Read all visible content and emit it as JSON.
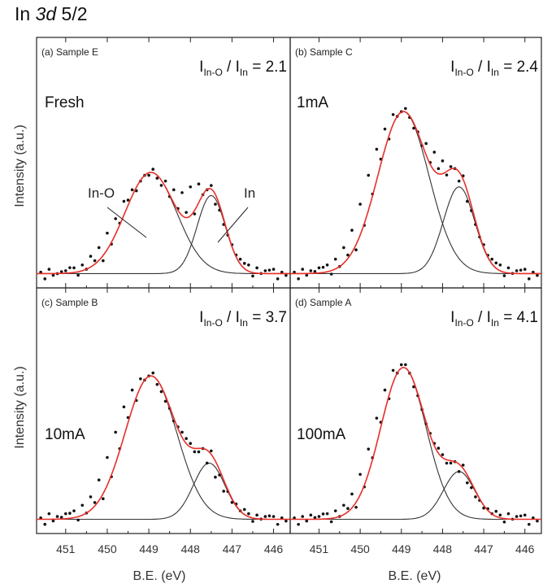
{
  "figure": {
    "title_prefix": "In ",
    "title_italic": "3d",
    "title_suffix": " 5/2",
    "ylabel": "Intensity (a.u.)",
    "xlabel": "B.E. (eV)"
  },
  "colors": {
    "data_points": "#111111",
    "component_fit": "#333333",
    "envelope_fit": "#e8302a",
    "axes": "#222222"
  },
  "chart_data": [
    {
      "type": "scatter",
      "panel_label": "(a) Sample E",
      "condition": "Fresh",
      "ratio": {
        "prefix": "I",
        "sub1": "In-O",
        "mid": " / I",
        "sub2": "In",
        "value": "= 2.1"
      },
      "x_axis": {
        "label": "B.E. (eV)",
        "reversed": true,
        "range": [
          451.7,
          445.6
        ],
        "ticks": [
          451,
          450,
          449,
          448,
          447,
          446
        ]
      },
      "y_range": [
        0,
        1.3
      ],
      "annotations": [
        {
          "text": "In-O",
          "target": [
            449.2,
            0.38
          ]
        },
        {
          "text": "In",
          "target": [
            447.6,
            0.22
          ]
        }
      ],
      "fit_components": [
        {
          "name": "In-O",
          "center": 448.95,
          "height": 0.7,
          "sigma": 0.62
        },
        {
          "name": "In",
          "center": 447.5,
          "height": 0.54,
          "sigma": 0.34
        }
      ],
      "baseline": 0.02,
      "series": [
        {
          "name": "data",
          "x": [
            451.6,
            451.4,
            451.2,
            451.0,
            450.8,
            450.6,
            450.4,
            450.2,
            450.0,
            449.8,
            449.6,
            449.4,
            449.2,
            449.0,
            448.8,
            448.6,
            448.4,
            448.2,
            448.0,
            447.8,
            447.6,
            447.4,
            447.2,
            447.0,
            446.8,
            446.6,
            446.4,
            446.2,
            446.0,
            445.8
          ],
          "y": [
            0.03,
            0.05,
            0.02,
            0.04,
            0.06,
            0.08,
            0.14,
            0.2,
            0.3,
            0.4,
            0.52,
            0.6,
            0.66,
            0.7,
            0.68,
            0.66,
            0.6,
            0.58,
            0.62,
            0.64,
            0.6,
            0.5,
            0.36,
            0.22,
            0.12,
            0.08,
            0.06,
            0.04,
            0.05,
            0.03
          ]
        }
      ]
    },
    {
      "type": "scatter",
      "panel_label": "(b) Sample C",
      "condition": "1mA",
      "ratio": {
        "prefix": "I",
        "sub1": "In-O",
        "mid": " / I",
        "sub2": "In",
        "value": "= 2.4"
      },
      "x_axis": {
        "label": "B.E. (eV)",
        "reversed": true,
        "range": [
          451.7,
          445.6
        ],
        "ticks": [
          451,
          450,
          449,
          448,
          447,
          446
        ]
      },
      "y_range": [
        0,
        1.3
      ],
      "annotations": [],
      "fit_components": [
        {
          "name": "In-O",
          "center": 448.95,
          "height": 1.12,
          "sigma": 0.62
        },
        {
          "name": "In",
          "center": 447.6,
          "height": 0.6,
          "sigma": 0.38
        }
      ],
      "baseline": 0.02,
      "series": [
        {
          "name": "data",
          "x": [
            451.6,
            451.4,
            451.2,
            451.0,
            450.8,
            450.6,
            450.4,
            450.2,
            450.0,
            449.8,
            449.6,
            449.4,
            449.2,
            449.0,
            448.8,
            448.6,
            448.4,
            448.2,
            448.0,
            447.8,
            447.6,
            447.4,
            447.2,
            447.0,
            446.8,
            446.6,
            446.4,
            446.2,
            446.0,
            445.8
          ],
          "y": [
            0.03,
            0.05,
            0.04,
            0.06,
            0.08,
            0.12,
            0.2,
            0.32,
            0.5,
            0.7,
            0.88,
            1.02,
            1.12,
            1.14,
            1.1,
            1.0,
            0.92,
            0.86,
            0.8,
            0.76,
            0.66,
            0.52,
            0.36,
            0.22,
            0.12,
            0.08,
            0.06,
            0.04,
            0.05,
            0.03
          ]
        }
      ]
    },
    {
      "type": "scatter",
      "panel_label": "(c) Sample B",
      "condition": "10mA",
      "ratio": {
        "prefix": "I",
        "sub1": "In-O",
        "mid": " / I",
        "sub2": "In",
        "value": "= 3.7"
      },
      "x_axis": {
        "label": "B.E. (eV)",
        "reversed": true,
        "range": [
          451.7,
          445.6
        ],
        "ticks": [
          451,
          450,
          449,
          448,
          447,
          446
        ]
      },
      "y_range": [
        0,
        1.3
      ],
      "annotations": [],
      "fit_components": [
        {
          "name": "In-O",
          "center": 448.95,
          "height": 1.02,
          "sigma": 0.62
        },
        {
          "name": "In",
          "center": 447.55,
          "height": 0.4,
          "sigma": 0.38
        }
      ],
      "baseline": 0.02,
      "series": [
        {
          "name": "data",
          "x": [
            451.6,
            451.4,
            451.2,
            451.0,
            450.8,
            450.6,
            450.4,
            450.2,
            450.0,
            449.8,
            449.6,
            449.4,
            449.2,
            449.0,
            448.8,
            448.6,
            448.4,
            448.2,
            448.0,
            447.8,
            447.6,
            447.4,
            447.2,
            447.0,
            446.8,
            446.6,
            446.4,
            446.2,
            446.0,
            445.8
          ],
          "y": [
            0.03,
            0.06,
            0.04,
            0.06,
            0.08,
            0.12,
            0.18,
            0.3,
            0.46,
            0.64,
            0.82,
            0.94,
            1.02,
            1.04,
            0.98,
            0.86,
            0.72,
            0.64,
            0.56,
            0.5,
            0.42,
            0.32,
            0.22,
            0.14,
            0.08,
            0.06,
            0.05,
            0.04,
            0.04,
            0.03
          ]
        }
      ]
    },
    {
      "type": "scatter",
      "panel_label": "(d) Sample A",
      "condition": "100mA",
      "ratio": {
        "prefix": "I",
        "sub1": "In-O",
        "mid": " / I",
        "sub2": "In",
        "value": "= 4.1"
      },
      "x_axis": {
        "label": "B.E. (eV)",
        "reversed": true,
        "range": [
          451.7,
          445.6
        ],
        "ticks": [
          451,
          450,
          449,
          448,
          447,
          446
        ]
      },
      "y_range": [
        0,
        1.3
      ],
      "annotations": [],
      "fit_components": [
        {
          "name": "In-O",
          "center": 448.95,
          "height": 1.08,
          "sigma": 0.55
        },
        {
          "name": "In",
          "center": 447.6,
          "height": 0.34,
          "sigma": 0.38
        }
      ],
      "baseline": 0.02,
      "series": [
        {
          "name": "data",
          "x": [
            451.6,
            451.4,
            451.2,
            451.0,
            450.8,
            450.6,
            450.4,
            450.2,
            450.0,
            449.8,
            449.6,
            449.4,
            449.2,
            449.0,
            448.8,
            448.6,
            448.4,
            448.2,
            448.0,
            447.8,
            447.6,
            447.4,
            447.2,
            447.0,
            446.8,
            446.6,
            446.4,
            446.2,
            446.0,
            445.8
          ],
          "y": [
            0.03,
            0.04,
            0.05,
            0.04,
            0.06,
            0.08,
            0.12,
            0.2,
            0.34,
            0.52,
            0.74,
            0.94,
            1.08,
            1.12,
            1.06,
            0.9,
            0.7,
            0.56,
            0.48,
            0.42,
            0.36,
            0.28,
            0.18,
            0.1,
            0.06,
            0.05,
            0.06,
            0.04,
            0.05,
            0.03
          ]
        }
      ]
    }
  ]
}
